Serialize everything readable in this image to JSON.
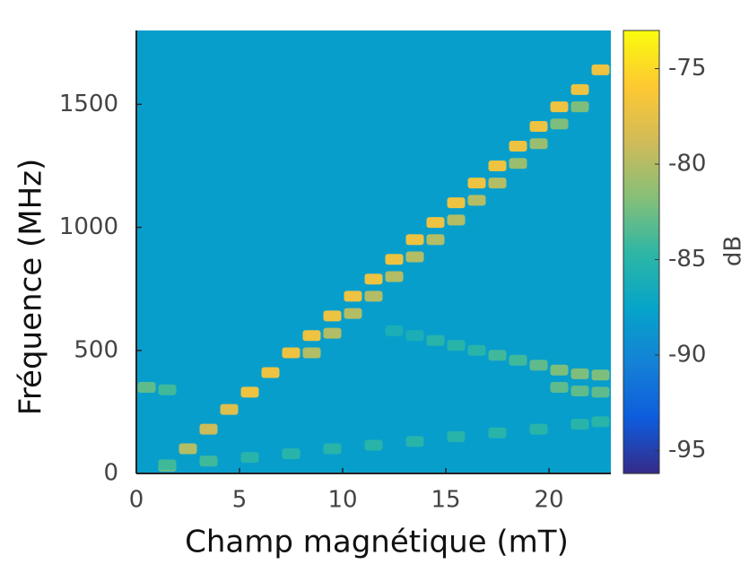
{
  "chart_data": {
    "type": "heatmap",
    "xlabel": "Champ magnétique (mT)",
    "ylabel": "Fréquence (MHz)",
    "colorbar_label": "dB",
    "xlim": [
      0,
      23
    ],
    "ylim": [
      0,
      1800
    ],
    "xticks": [
      0,
      5,
      10,
      15,
      20
    ],
    "yticks": [
      0,
      500,
      1000,
      1500
    ],
    "clim": [
      -96.2,
      -73
    ],
    "cticks": [
      -95,
      -90,
      -85,
      -80,
      -75
    ],
    "colormap": [
      "#352a87",
      "#0f5cdd",
      "#1481d6",
      "#06a4ca",
      "#2eb7a4",
      "#87bf77",
      "#d1bb59",
      "#fec832",
      "#f9fb0e"
    ],
    "background_value": -88,
    "series": [
      {
        "x": [
          1.5,
          2.5,
          3.5,
          4.5,
          5.5,
          6.5,
          7.5,
          8.5,
          9.5,
          10.5,
          11.5,
          12.5,
          13.5,
          14.5,
          15.5,
          16.5,
          17.5,
          18.5,
          19.5,
          20.5,
          21.5,
          22.5
        ],
        "y": [
          30,
          100,
          180,
          260,
          330,
          410,
          490,
          560,
          640,
          720,
          790,
          870,
          950,
          1020,
          1100,
          1180,
          1250,
          1330,
          1410,
          1490,
          1560,
          1640
        ],
        "values": [
          -82,
          -80,
          -79,
          -78,
          -77,
          -77,
          -77,
          -77,
          -77,
          -77,
          -77,
          -77,
          -77,
          -77,
          -77,
          -77,
          -77,
          -77,
          -77,
          -77,
          -77,
          -77
        ]
      },
      {
        "x": [
          8.5,
          9.5,
          10.5,
          11.5,
          12.5,
          13.5,
          14.5,
          15.5,
          16.5,
          17.5,
          18.5,
          19.5,
          20.5,
          21.5
        ],
        "y": [
          490,
          570,
          650,
          720,
          800,
          880,
          950,
          1030,
          1110,
          1180,
          1260,
          1340,
          1420,
          1490
        ],
        "values": [
          -80,
          -80,
          -80,
          -80,
          -80,
          -80,
          -80,
          -80,
          -80,
          -80,
          -81,
          -81,
          -82,
          -82
        ]
      },
      {
        "x": [
          1.5,
          3.5,
          5.5,
          7.5,
          9.5,
          11.5,
          13.5,
          15.5,
          17.5,
          19.5,
          21.5,
          22.5
        ],
        "y": [
          35,
          50,
          65,
          80,
          100,
          115,
          130,
          150,
          165,
          180,
          200,
          210
        ],
        "values": [
          -84,
          -84,
          -85,
          -85,
          -85,
          -85,
          -85,
          -85,
          -85,
          -85,
          -85,
          -85
        ]
      },
      {
        "x": [
          12.5,
          13.5,
          14.5,
          15.5,
          16.5,
          17.5,
          18.5,
          19.5,
          20.5,
          21.5,
          22.5
        ],
        "y": [
          580,
          560,
          540,
          520,
          500,
          480,
          460,
          440,
          420,
          405,
          400
        ],
        "values": [
          -86,
          -86,
          -85,
          -85,
          -85,
          -84,
          -84,
          -83,
          -82,
          -82,
          -82
        ]
      },
      {
        "x": [
          0.5,
          1.5,
          20.5,
          21.5,
          22.5
        ],
        "y": [
          350,
          340,
          350,
          335,
          330
        ],
        "values": [
          -83,
          -84,
          -83,
          -83,
          -83
        ]
      }
    ]
  }
}
